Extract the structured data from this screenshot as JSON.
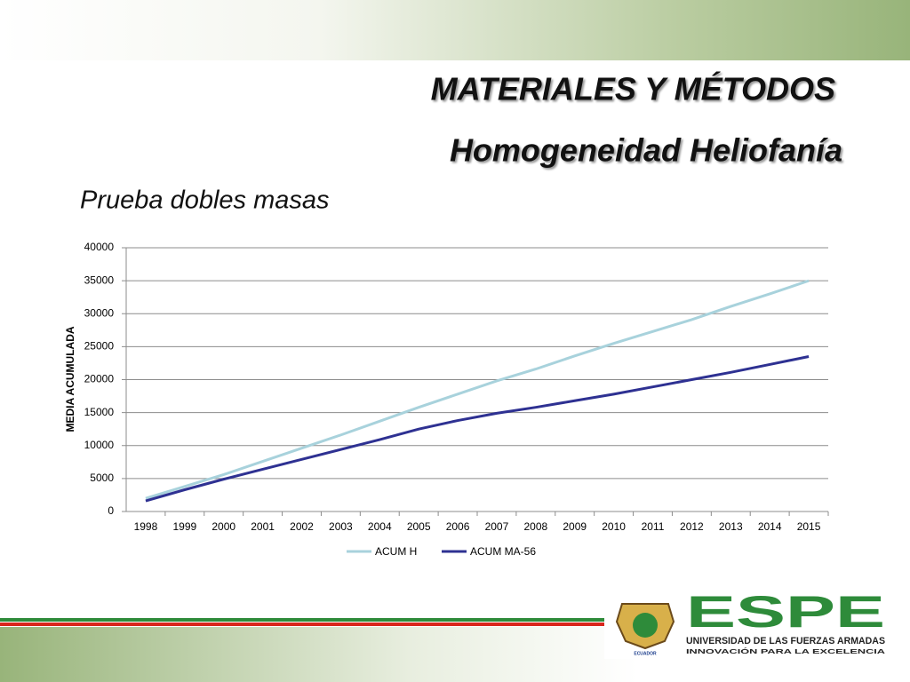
{
  "header": {
    "title": "MATERIALES Y MÉTODOS",
    "subtitle": "Homogeneidad  Heliofanía",
    "section": "Prueba dobles masas"
  },
  "logo": {
    "name": "ESPE",
    "university": "UNIVERSIDAD DE LAS FUERZAS ARMADAS",
    "motto": "INNOVACIÓN PARA LA EXCELENCIA",
    "country": "ECUADOR"
  },
  "chart_data": {
    "type": "line",
    "y_label": "MEDIA ACUMULADA",
    "categories": [
      "1998",
      "1999",
      "2000",
      "2001",
      "2002",
      "2003",
      "2004",
      "2005",
      "2006",
      "2007",
      "2008",
      "2009",
      "2010",
      "2011",
      "2012",
      "2013",
      "2014",
      "2015"
    ],
    "series": [
      {
        "name": "ACUM H",
        "color": "#a8d2dc",
        "values": [
          2000,
          3800,
          5600,
          7600,
          9600,
          11600,
          13700,
          15800,
          17800,
          19800,
          21600,
          23600,
          25500,
          27300,
          29100,
          31100,
          33000,
          35000
        ]
      },
      {
        "name": "ACUM MA-56",
        "color": "#2e3192",
        "values": [
          1600,
          3300,
          4900,
          6400,
          7900,
          9400,
          10900,
          12500,
          13800,
          14900,
          15800,
          16800,
          17800,
          18900,
          20000,
          21100,
          22300,
          23500
        ]
      }
    ],
    "ylim": [
      0,
      40000
    ],
    "yticks": [
      0,
      5000,
      10000,
      15000,
      20000,
      25000,
      30000,
      35000,
      40000
    ],
    "grid": true,
    "legend": "bottom"
  }
}
